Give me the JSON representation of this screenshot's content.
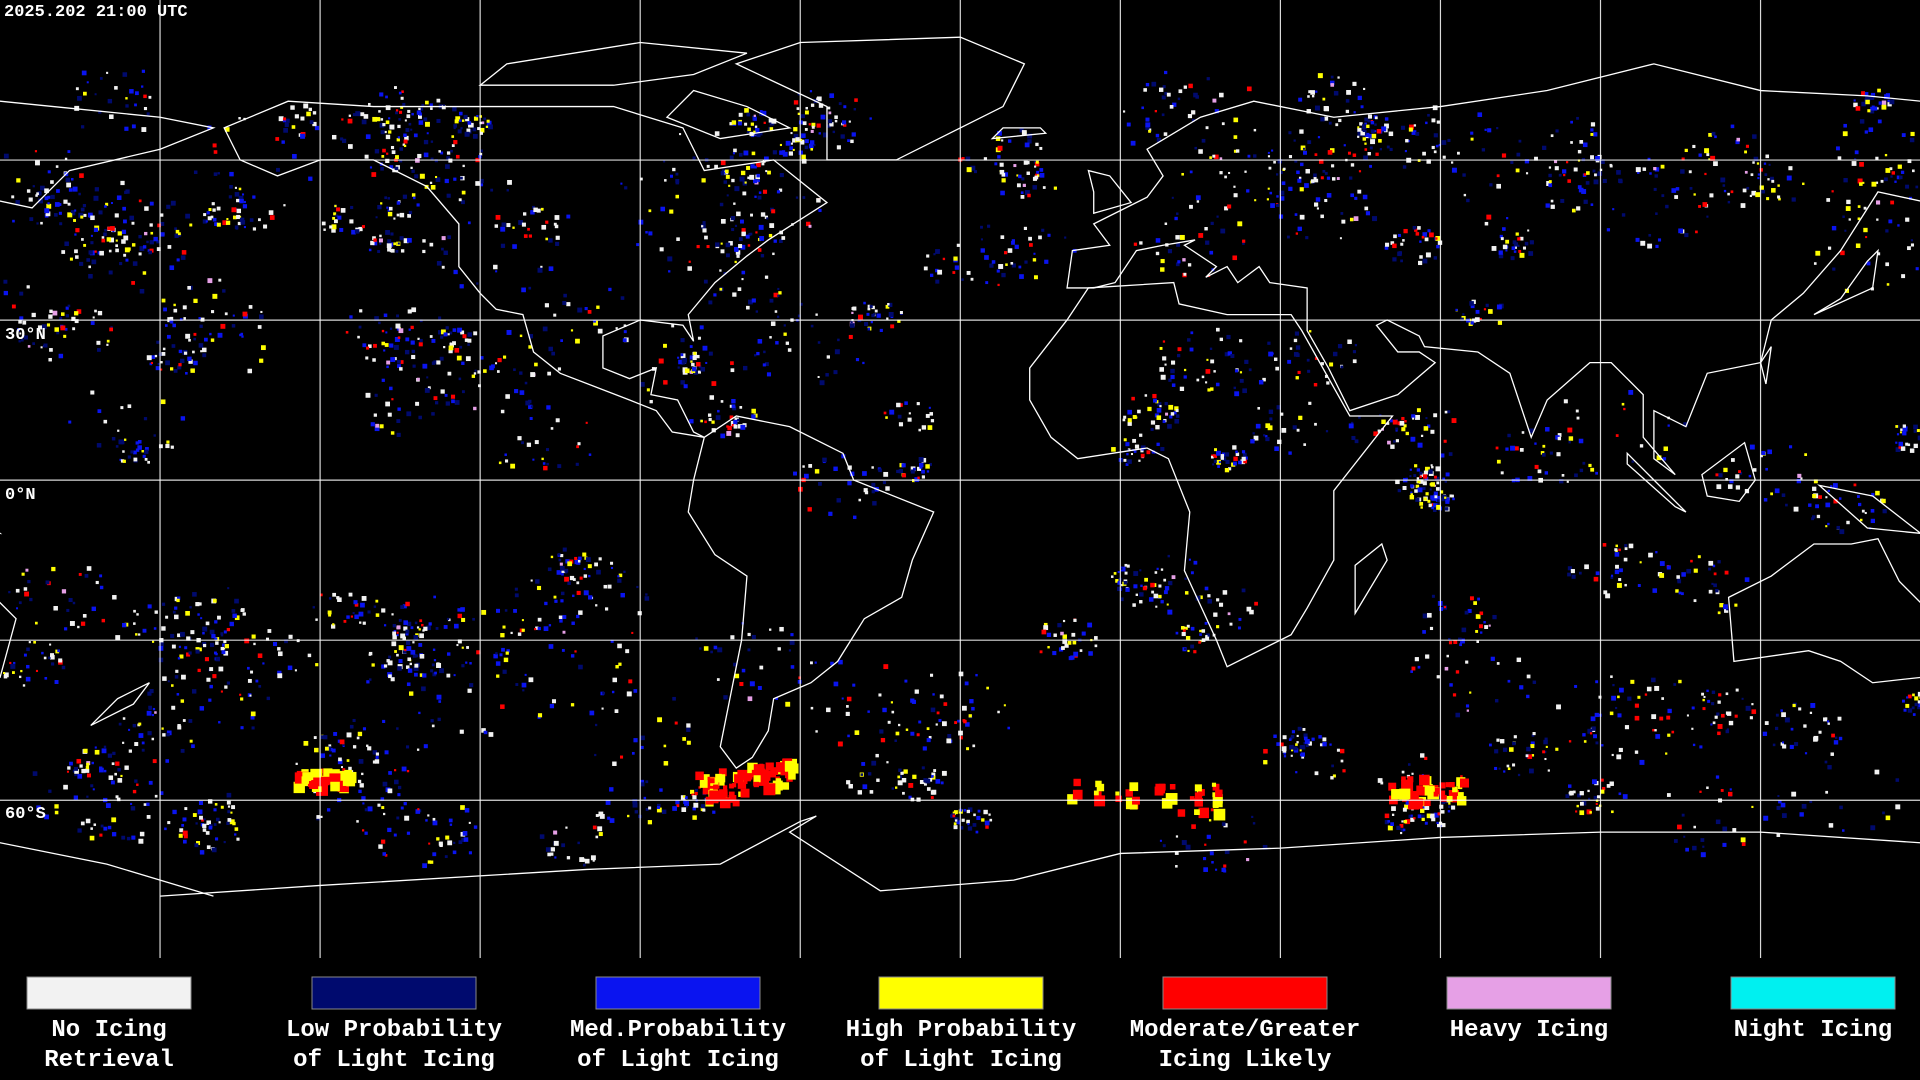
{
  "header": {
    "timestamp": "2025.202 21:00 UTC"
  },
  "map": {
    "latitude_labels": [
      "30°N",
      "0°N",
      "60°S"
    ]
  },
  "legend": {
    "items": [
      {
        "lines": [
          "No Icing",
          "Retrieval"
        ],
        "color": "#f2f2f2"
      },
      {
        "lines": [
          "Low Probability",
          "of Light Icing"
        ],
        "color": "#000a6e"
      },
      {
        "lines": [
          "Med.Probability",
          "of Light Icing"
        ],
        "color": "#0a14f0"
      },
      {
        "lines": [
          "High Probability",
          "of Light Icing"
        ],
        "color": "#ffff00"
      },
      {
        "lines": [
          "Moderate/Greater",
          "Icing Likely"
        ],
        "color": "#ff0000"
      },
      {
        "lines": [
          "Heavy Icing"
        ],
        "color": "#e6a0e6"
      },
      {
        "lines": [
          "Night Icing"
        ],
        "color": "#00f0f0"
      }
    ]
  }
}
